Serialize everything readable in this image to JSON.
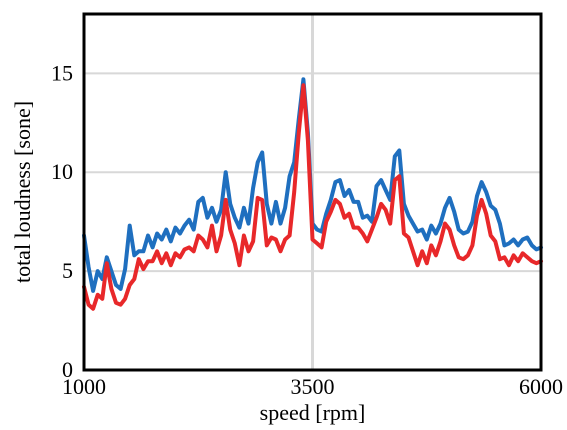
{
  "chart_data": {
    "type": "line",
    "title": "",
    "xlabel": "speed [rpm]",
    "ylabel": "total loudness [sone]",
    "xlim": [
      1000,
      6000
    ],
    "ylim": [
      0,
      18
    ],
    "x_ticks": [
      1000,
      3500,
      6000
    ],
    "x_tick_labels": [
      "1000",
      "3500",
      "6000"
    ],
    "y_ticks": [
      0,
      5,
      10,
      15
    ],
    "y_tick_labels": [
      "0",
      "5",
      "10",
      "15"
    ],
    "grid": true,
    "legend": "none",
    "series": [
      {
        "color": "#1f6fbf",
        "x": [
          1000,
          1050,
          1100,
          1150,
          1200,
          1250,
          1300,
          1350,
          1400,
          1450,
          1500,
          1550,
          1600,
          1650,
          1700,
          1750,
          1800,
          1850,
          1900,
          1950,
          2000,
          2050,
          2100,
          2150,
          2200,
          2250,
          2300,
          2350,
          2400,
          2450,
          2500,
          2550,
          2600,
          2650,
          2700,
          2750,
          2800,
          2850,
          2900,
          2950,
          3000,
          3050,
          3100,
          3150,
          3200,
          3250,
          3300,
          3350,
          3400,
          3450,
          3500,
          3550,
          3600,
          3650,
          3700,
          3750,
          3800,
          3850,
          3900,
          3950,
          4000,
          4050,
          4100,
          4150,
          4200,
          4250,
          4300,
          4350,
          4400,
          4450,
          4500,
          4550,
          4600,
          4650,
          4700,
          4750,
          4800,
          4850,
          4900,
          4950,
          5000,
          5050,
          5100,
          5150,
          5200,
          5250,
          5300,
          5350,
          5400,
          5450,
          5500,
          5550,
          5600,
          5650,
          5700,
          5750,
          5800,
          5850,
          5900,
          5950,
          6000
        ],
        "y": [
          6.8,
          5.2,
          4.0,
          5.0,
          4.6,
          5.7,
          5.0,
          4.3,
          4.1,
          5.1,
          7.3,
          5.8,
          6.0,
          6.0,
          6.8,
          6.2,
          6.9,
          6.6,
          7.1,
          6.5,
          7.2,
          6.9,
          7.3,
          7.6,
          7.1,
          8.5,
          8.7,
          7.7,
          8.2,
          7.5,
          8.1,
          10.0,
          8.4,
          7.7,
          7.2,
          8.2,
          7.4,
          9.2,
          10.5,
          11.0,
          8.4,
          7.4,
          8.5,
          7.4,
          8.2,
          9.8,
          10.5,
          12.7,
          14.7,
          12.0,
          7.4,
          7.1,
          7.0,
          7.9,
          8.6,
          9.5,
          9.6,
          8.8,
          9.1,
          8.5,
          8.5,
          7.7,
          7.8,
          7.5,
          9.3,
          9.6,
          9.1,
          8.6,
          10.8,
          11.1,
          8.4,
          7.8,
          7.4,
          7.0,
          7.1,
          6.6,
          7.3,
          6.9,
          7.4,
          8.2,
          8.7,
          8.0,
          7.1,
          6.9,
          7.0,
          7.5,
          8.8,
          9.5,
          9.0,
          8.3,
          8.1,
          7.4,
          6.3,
          6.4,
          6.6,
          6.3,
          6.6,
          6.7,
          6.3,
          6.1,
          6.2
        ]
      },
      {
        "color": "#e8282a",
        "x": [
          1000,
          1050,
          1100,
          1150,
          1200,
          1250,
          1300,
          1350,
          1400,
          1450,
          1500,
          1550,
          1600,
          1650,
          1700,
          1750,
          1800,
          1850,
          1900,
          1950,
          2000,
          2050,
          2100,
          2150,
          2200,
          2250,
          2300,
          2350,
          2400,
          2450,
          2500,
          2550,
          2600,
          2650,
          2700,
          2750,
          2800,
          2850,
          2900,
          2950,
          3000,
          3050,
          3100,
          3150,
          3200,
          3250,
          3300,
          3350,
          3400,
          3450,
          3500,
          3550,
          3600,
          3650,
          3700,
          3750,
          3800,
          3850,
          3900,
          3950,
          4000,
          4050,
          4100,
          4150,
          4200,
          4250,
          4300,
          4350,
          4400,
          4450,
          4500,
          4550,
          4600,
          4650,
          4700,
          4750,
          4800,
          4850,
          4900,
          4950,
          5000,
          5050,
          5100,
          5150,
          5200,
          5250,
          5300,
          5350,
          5400,
          5450,
          5500,
          5550,
          5600,
          5650,
          5700,
          5750,
          5800,
          5850,
          5900,
          5950,
          6000
        ],
        "y": [
          4.2,
          3.3,
          3.1,
          3.8,
          3.6,
          5.4,
          4.1,
          3.4,
          3.3,
          3.6,
          4.3,
          4.6,
          5.6,
          5.1,
          5.5,
          5.5,
          6.0,
          5.4,
          5.9,
          5.3,
          5.9,
          5.7,
          6.1,
          6.2,
          6.0,
          6.8,
          6.6,
          6.2,
          7.3,
          6.0,
          6.8,
          8.6,
          7.1,
          6.4,
          5.3,
          6.8,
          6.0,
          6.5,
          8.7,
          8.6,
          6.3,
          6.7,
          6.6,
          6.0,
          6.6,
          6.8,
          9.0,
          12.0,
          14.4,
          11.6,
          6.6,
          6.4,
          6.2,
          7.5,
          8.0,
          8.6,
          8.4,
          7.7,
          7.9,
          7.2,
          7.2,
          6.9,
          6.5,
          7.1,
          7.7,
          8.4,
          8.1,
          7.4,
          9.6,
          9.8,
          6.9,
          6.7,
          6.0,
          5.3,
          6.0,
          5.4,
          6.3,
          5.8,
          6.5,
          7.4,
          7.1,
          6.3,
          5.7,
          5.6,
          5.8,
          6.3,
          7.8,
          8.6,
          7.9,
          6.8,
          6.5,
          5.6,
          5.7,
          5.3,
          5.8,
          5.5,
          5.9,
          5.7,
          5.5,
          5.4,
          5.5
        ]
      }
    ]
  },
  "colors": {
    "frame": "#000000",
    "grid": "#d8d8d8",
    "background": "#ffffff"
  }
}
